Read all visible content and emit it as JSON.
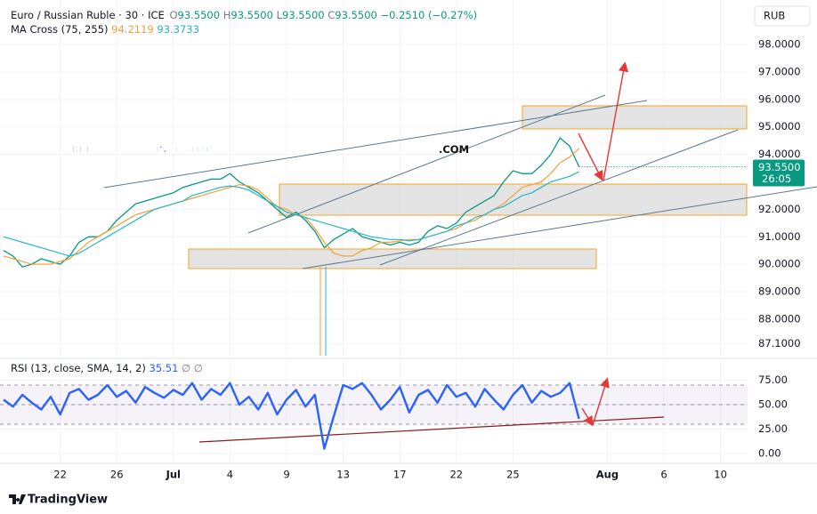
{
  "chart_data": [
    {
      "type": "line",
      "title": "Euro / Russian Ruble · 30 · ICE",
      "ohlc": [
        {
          "key": "O",
          "value": "93.5500"
        },
        {
          "key": "H",
          "value": "93.5500"
        },
        {
          "key": "L",
          "value": "93.5500"
        },
        {
          "key": "C",
          "value": "93.5500"
        }
      ],
      "change": "−0.2510 (−0.27%)",
      "indicator": "MA Cross (75, 255)",
      "currency": "RUB",
      "last_price_label": "93.5500",
      "countdown": "26:05",
      "ylim": [
        86.67,
        99.62
      ],
      "yticks": [
        {
          "value": 98,
          "label": "98.0000"
        },
        {
          "value": 97,
          "label": "97.0000"
        },
        {
          "value": 96,
          "label": "96.0000"
        },
        {
          "value": 95,
          "label": "95.0000"
        },
        {
          "value": 94,
          "label": "94.0000"
        },
        {
          "value": 92,
          "label": "92.0000"
        },
        {
          "value": 91,
          "label": "91.0000"
        },
        {
          "value": 90,
          "label": "90.0000"
        },
        {
          "value": 89,
          "label": "89.0000"
        },
        {
          "value": 88,
          "label": "88.0000"
        },
        {
          "value": 87.1,
          "label": "87.1000"
        }
      ],
      "grid": true,
      "series": [
        {
          "color": "#089981",
          "width": 1.3,
          "values": [
            90.5,
            90.3,
            89.9,
            90.0,
            90.2,
            90.1,
            90.0,
            90.3,
            90.8,
            91.0,
            91.0,
            91.2,
            91.6,
            91.9,
            92.2,
            92.3,
            92.4,
            92.5,
            92.6,
            92.8,
            92.9,
            93.0,
            93.1,
            93.1,
            93.3,
            93.0,
            92.8,
            92.6,
            92.3,
            92.0,
            91.7,
            91.9,
            91.6,
            91.2,
            90.6,
            90.9,
            91.1,
            91.3,
            91.0,
            90.9,
            90.8,
            90.7,
            90.8,
            90.7,
            90.8,
            91.2,
            91.4,
            91.3,
            91.5,
            91.9,
            92.1,
            92.3,
            92.5,
            93.0,
            93.4,
            93.3,
            93.3,
            93.6,
            94.0,
            94.6,
            94.3,
            93.55,
            null,
            null,
            null,
            null,
            null,
            null,
            null,
            null,
            null,
            null,
            null,
            null,
            null,
            null,
            null,
            null,
            null,
            null
          ]
        },
        {
          "color": "#f5a038",
          "width": 1.2,
          "last_value_label": "94.2119",
          "values": [
            90.3,
            90.2,
            90.1,
            90.0,
            90.0,
            90.0,
            90.1,
            90.2,
            90.5,
            90.8,
            91.0,
            91.2,
            91.4,
            91.6,
            91.8,
            91.9,
            92.0,
            92.1,
            92.2,
            92.3,
            92.4,
            92.5,
            92.6,
            92.7,
            92.8,
            92.9,
            92.85,
            92.7,
            92.4,
            92.1,
            92.0,
            91.8,
            91.7,
            91.3,
            90.8,
            90.4,
            90.3,
            90.3,
            90.5,
            90.6,
            90.8,
            90.8,
            90.85,
            90.9,
            90.9,
            91.0,
            91.1,
            91.2,
            91.3,
            91.5,
            91.6,
            91.8,
            92.0,
            92.2,
            92.5,
            92.8,
            92.9,
            93.0,
            93.3,
            93.7,
            93.9,
            94.21,
            null,
            null,
            null,
            null,
            null,
            null,
            null,
            null,
            null,
            null,
            null,
            null,
            null,
            null,
            null,
            null,
            null,
            null
          ]
        },
        {
          "color": "#26b5c9",
          "width": 1.2,
          "last_value_label": "93.3733",
          "values": [
            91.0,
            90.9,
            90.8,
            90.7,
            90.6,
            90.5,
            90.4,
            90.3,
            90.4,
            90.6,
            90.8,
            91.0,
            91.2,
            91.4,
            91.6,
            91.8,
            92.0,
            92.1,
            92.2,
            92.3,
            92.5,
            92.6,
            92.7,
            92.8,
            92.85,
            92.8,
            92.7,
            92.5,
            92.3,
            92.1,
            91.9,
            91.8,
            91.7,
            91.6,
            91.5,
            91.4,
            91.3,
            91.2,
            91.1,
            91.0,
            90.95,
            90.9,
            90.9,
            90.85,
            90.9,
            91.0,
            91.1,
            91.2,
            91.4,
            91.5,
            91.7,
            91.8,
            92.0,
            92.1,
            92.3,
            92.5,
            92.6,
            92.8,
            93.0,
            93.1,
            93.2,
            93.37,
            null,
            null,
            null,
            null,
            null,
            null,
            null,
            null,
            null,
            null,
            null,
            null,
            null,
            null,
            null,
            null,
            null,
            null
          ]
        }
      ]
    },
    {
      "type": "line",
      "title": "RSI (13, close, SMA, 14, 2)",
      "value_label": "35.51",
      "flags": "∅ ∅",
      "ylim": [
        -9.1,
        95.5
      ],
      "yticks": [
        {
          "value": 75,
          "label": "75.00"
        },
        {
          "value": 50,
          "label": "50.00"
        },
        {
          "value": 25,
          "label": "25.00"
        },
        {
          "value": 0,
          "label": "0.00"
        }
      ],
      "bands": [
        70,
        50,
        30
      ],
      "categories": [
        null,
        null,
        null,
        null,
        null,
        null,
        "22",
        null,
        null,
        null,
        null,
        null,
        "26",
        null,
        null,
        null,
        null,
        null,
        "Jul",
        null,
        null,
        null,
        null,
        null,
        "4",
        null,
        null,
        null,
        null,
        null,
        "9",
        null,
        null,
        null,
        null,
        null,
        "13",
        null,
        null,
        null,
        null,
        null,
        "17",
        null,
        null,
        null,
        null,
        null,
        "22",
        null,
        null,
        null,
        null,
        null,
        "25",
        null,
        null,
        null,
        null,
        null,
        null,
        null,
        null,
        null,
        "Aug",
        null,
        null,
        null,
        null,
        null,
        "6",
        null,
        null,
        null,
        null,
        null,
        "10",
        null,
        null,
        null
      ],
      "series": [
        {
          "color": "#2962ff",
          "width": 2.4,
          "values": [
            55,
            48,
            60,
            52,
            45,
            58,
            40,
            62,
            66,
            55,
            60,
            70,
            58,
            64,
            52,
            68,
            62,
            57,
            65,
            60,
            72,
            55,
            66,
            60,
            72,
            50,
            58,
            45,
            62,
            40,
            55,
            65,
            48,
            60,
            5,
            38,
            70,
            66,
            72,
            60,
            45,
            55,
            68,
            42,
            60,
            65,
            52,
            70,
            58,
            62,
            48,
            66,
            55,
            45,
            60,
            70,
            52,
            64,
            58,
            62,
            72,
            35.51,
            null,
            null,
            null,
            null,
            null,
            null,
            null,
            null,
            null,
            null,
            null,
            null,
            null,
            null,
            null,
            null,
            null,
            null
          ]
        }
      ]
    }
  ],
  "watermark": [
    "BEL",
    "INVESTOR",
    ".COM"
  ],
  "brand": "TradingView"
}
